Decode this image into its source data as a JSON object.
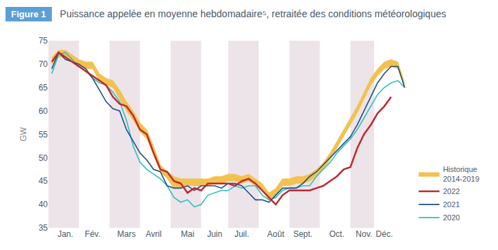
{
  "chart_data": {
    "type": "line",
    "figure_label": "Figure 1",
    "title": "Puissance appelée en moyenne hebdomadaire⁵, retraitée des conditions météorologiques",
    "y_label": "GW",
    "categories": [
      null,
      null,
      "Jan.",
      null,
      null,
      null,
      "Fév.",
      null,
      null,
      null,
      null,
      "Mars",
      null,
      null,
      null,
      "Avril",
      null,
      null,
      null,
      null,
      "Mai",
      null,
      null,
      null,
      "Juin",
      null,
      null,
      null,
      "Juil.",
      null,
      null,
      null,
      null,
      "Août",
      null,
      null,
      null,
      "Sept.",
      null,
      null,
      null,
      null,
      "Oct.",
      null,
      null,
      null,
      "Nov.",
      null,
      null,
      "Déc.",
      null,
      null,
      null
    ],
    "series": [
      {
        "name": "Historique 2014-2019",
        "type": "band",
        "color": "#f3c150",
        "low": [
          70,
          71.5,
          71.5,
          70.5,
          69.5,
          69,
          69,
          66.5,
          65.5,
          65,
          62.5,
          60,
          58,
          55.5,
          54,
          50.5,
          47,
          45.5,
          43.5,
          43.5,
          44,
          44,
          44,
          44,
          44.5,
          44.5,
          45,
          45,
          44.5,
          45,
          44,
          43,
          41,
          42,
          44,
          44,
          44.5,
          44.5,
          45,
          46,
          47.5,
          49.5,
          52,
          54.5,
          57,
          59.5,
          62.5,
          65.5,
          67.5,
          69,
          69.5,
          69,
          65
        ],
        "high": [
          71.5,
          73,
          73,
          72,
          71,
          70.5,
          70.5,
          68,
          67,
          66.5,
          64.5,
          62,
          60,
          57.5,
          56,
          52.5,
          48.5,
          47,
          46,
          45.5,
          45.5,
          45.5,
          45.5,
          45.5,
          46,
          46,
          46.5,
          46.5,
          46,
          46.5,
          45.5,
          44.5,
          42.5,
          43.5,
          45.5,
          45.5,
          46,
          46,
          46.5,
          47.5,
          49,
          51,
          53.5,
          56,
          58.5,
          61,
          64,
          67,
          69,
          70.5,
          71,
          70.5,
          66
        ]
      },
      {
        "name": "2020",
        "color": "#2bbfc0",
        "values": [
          68,
          72,
          72.5,
          71,
          69.5,
          68.5,
          67,
          66,
          65.5,
          64,
          62,
          58,
          52.5,
          49,
          47.5,
          46.5,
          45.5,
          44,
          41.5,
          40.5,
          41,
          39.5,
          40,
          42,
          42.5,
          43,
          43,
          44,
          43.5,
          44,
          44,
          42,
          41,
          41.5,
          43,
          43.5,
          43.5,
          44,
          44,
          46,
          47.5,
          49,
          51,
          52.5,
          54,
          56,
          58.5,
          61,
          63.5,
          65,
          66,
          66.5,
          65
        ]
      },
      {
        "name": "2021",
        "color": "#1d4e7f",
        "values": [
          69,
          72.5,
          71,
          70.5,
          70,
          69,
          67,
          64.5,
          62,
          60.5,
          60,
          56,
          53.5,
          51,
          49.5,
          47.5,
          47,
          44,
          43.5,
          43.5,
          44,
          43,
          44,
          44,
          44,
          43.5,
          44.5,
          44.5,
          44,
          42.5,
          41,
          41,
          40.5,
          42,
          43.5,
          43.5,
          43.5,
          44.5,
          46,
          47,
          48.5,
          50,
          51.5,
          53,
          54.5,
          57,
          60,
          63,
          66,
          68,
          69.5,
          69.5,
          65
        ]
      },
      {
        "name": "2022",
        "color": "#c0282d",
        "values": [
          70.5,
          72.5,
          71.5,
          70.5,
          69.5,
          68.5,
          67.5,
          66.5,
          65.5,
          63,
          61.5,
          61,
          59,
          56,
          55,
          51,
          47.5,
          47,
          45,
          44.5,
          42.5,
          43.5,
          43,
          44.5,
          44.5,
          44.5,
          44.5,
          44,
          45,
          45.5,
          44.5,
          43,
          41.5,
          40,
          42,
          43,
          43,
          43,
          43,
          43.5,
          44,
          45,
          46,
          47.5,
          48,
          52,
          55,
          57,
          59.5,
          61,
          63,
          null,
          null
        ]
      }
    ],
    "ylim": [
      35,
      75
    ],
    "yticks": [
      35,
      40,
      45,
      50,
      55,
      60,
      65,
      70,
      75
    ],
    "grid": false,
    "legend": "right"
  }
}
